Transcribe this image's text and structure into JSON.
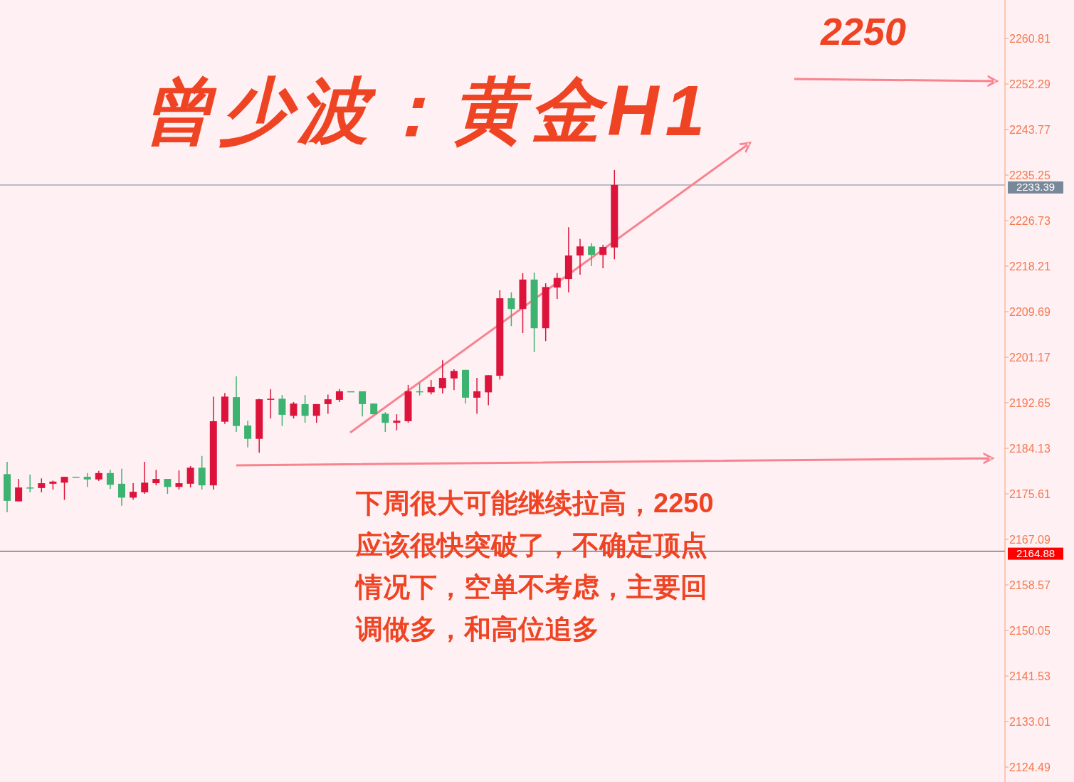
{
  "chart_data": {
    "type": "candlestick",
    "title": "曾少波：黄金H1",
    "annotations": [
      "2250",
      "下周很大可能继续拉高，2250应该很快突破了，不确定顶点情况下，空单不考虑，主要回调做多，和高位追多"
    ],
    "categories": [
      null,
      null,
      null,
      null,
      null,
      null,
      null,
      null,
      null,
      null,
      null,
      null,
      null,
      null,
      null,
      null,
      null,
      null,
      null,
      null,
      null,
      null,
      null,
      null,
      null,
      null,
      null,
      null,
      null,
      null,
      null,
      null,
      null,
      null,
      null,
      null,
      null,
      null,
      null,
      null,
      null,
      null,
      null,
      null,
      null,
      null,
      null,
      null,
      null,
      null,
      null,
      null,
      null,
      null,
      null,
      null,
      null,
      null,
      null,
      null,
      null,
      null,
      null,
      null,
      null,
      null,
      null,
      null,
      null,
      null,
      null,
      null,
      null,
      null,
      null,
      null,
      null,
      null,
      null,
      null,
      null,
      null,
      null,
      null,
      null,
      null,
      null,
      null
    ],
    "ohlc": [
      [
        2179.3,
        2181.6,
        2172.2,
        2174.3
      ],
      [
        2174.2,
        2178.4,
        2174.2,
        2176.8
      ],
      [
        2176.8,
        2179.2,
        2175.9,
        2176.8
      ],
      [
        2176.7,
        2178.5,
        2175.9,
        2177.6
      ],
      [
        2177.5,
        2178.1,
        2176.4,
        2177.9
      ],
      [
        2177.7,
        2178.8,
        2174.5,
        2178.8
      ],
      [
        2178.8,
        2178.8,
        2178.8,
        2178.8
      ],
      [
        2178.8,
        2179.5,
        2176.9,
        2178.3
      ],
      [
        2178.3,
        2179.9,
        2178.0,
        2179.5
      ],
      [
        2179.5,
        2180.1,
        2176.5,
        2177.3
      ],
      [
        2177.5,
        2180.3,
        2173.4,
        2174.9
      ],
      [
        2174.9,
        2177.6,
        2174.5,
        2176.0
      ],
      [
        2175.9,
        2181.6,
        2175.6,
        2177.7
      ],
      [
        2177.6,
        2180.1,
        2177.2,
        2178.4
      ],
      [
        2178.4,
        2178.4,
        2175.6,
        2176.9
      ],
      [
        2176.9,
        2180.0,
        2176.4,
        2177.6
      ],
      [
        2177.5,
        2180.8,
        2176.8,
        2180.5
      ],
      [
        2180.5,
        2182.7,
        2176.4,
        2177.2
      ],
      [
        2177.2,
        2193.8,
        2176.4,
        2189.2
      ],
      [
        2189.1,
        2194.5,
        2188.7,
        2193.8
      ],
      [
        2193.7,
        2197.6,
        2187.2,
        2188.3
      ],
      [
        2188.4,
        2189.3,
        2184.3,
        2185.9
      ],
      [
        2185.9,
        2193.4,
        2183.3,
        2193.3
      ],
      [
        2193.3,
        2195.2,
        2189.7,
        2193.4
      ],
      [
        2193.4,
        2194.1,
        2188.3,
        2190.4
      ],
      [
        2190.2,
        2192.8,
        2189.7,
        2192.5
      ],
      [
        2192.4,
        2194.1,
        2188.9,
        2190.2
      ],
      [
        2190.2,
        2192.4,
        2188.9,
        2192.4
      ],
      [
        2192.4,
        2194.2,
        2190.6,
        2193.3
      ],
      [
        2193.2,
        2195.2,
        2192.8,
        2194.8
      ],
      [
        2194.8,
        2194.8,
        2194.8,
        2194.8
      ],
      [
        2194.8,
        2194.8,
        2190.1,
        2192.4
      ],
      [
        2192.5,
        2192.5,
        2190.5,
        2190.5
      ],
      [
        2190.6,
        2190.9,
        2187.2,
        2188.9
      ],
      [
        2188.9,
        2190.5,
        2187.5,
        2189.3
      ],
      [
        2189.2,
        2196.0,
        2188.9,
        2194.8
      ],
      [
        2194.8,
        2196.4,
        2194.0,
        2194.8
      ],
      [
        2194.6,
        2196.9,
        2194.2,
        2195.6
      ],
      [
        2195.4,
        2200.6,
        2194.4,
        2197.3
      ],
      [
        2197.2,
        2198.9,
        2195.0,
        2198.6
      ],
      [
        2198.8,
        2198.8,
        2192.5,
        2193.6
      ],
      [
        2193.6,
        2197.3,
        2190.6,
        2194.8
      ],
      [
        2194.6,
        2197.8,
        2192.2,
        2197.8
      ],
      [
        2197.7,
        2213.7,
        2197.0,
        2212.2
      ],
      [
        2212.2,
        2213.3,
        2207.0,
        2210.2
      ],
      [
        2210.2,
        2216.9,
        2205.7,
        2215.7
      ],
      [
        2215.7,
        2217.0,
        2202.1,
        2206.6
      ],
      [
        2206.6,
        2215.0,
        2204.2,
        2214.3
      ],
      [
        2214.2,
        2216.9,
        2212.1,
        2216.0
      ],
      [
        2215.8,
        2225.5,
        2213.3,
        2220.2
      ],
      [
        2220.2,
        2223.3,
        2216.6,
        2221.9
      ],
      [
        2221.9,
        2222.5,
        2218.2,
        2220.3
      ],
      [
        2220.3,
        2222.2,
        2217.8,
        2221.8
      ],
      [
        2221.7,
        2236.2,
        2219.5,
        2233.4
      ],
      null,
      null,
      null,
      null,
      null,
      null,
      null,
      null,
      null,
      null,
      null,
      null,
      null,
      null,
      null,
      null,
      null,
      null,
      null,
      null,
      null,
      null,
      null,
      null,
      null,
      null,
      null,
      null,
      null,
      null,
      null,
      null,
      null,
      null
    ],
    "colors": [
      "#3cb371",
      "#dc143c",
      "#3cb371",
      "#dc143c",
      "#dc143c",
      "#dc143c",
      "#3cb371",
      "#3cb371",
      "#dc143c",
      "#3cb371",
      "#3cb371",
      "#dc143c",
      "#dc143c",
      "#dc143c",
      "#3cb371",
      "#dc143c",
      "#dc143c",
      "#3cb371",
      "#dc143c",
      "#dc143c",
      "#3cb371",
      "#3cb371",
      "#dc143c",
      "#dc143c",
      "#3cb371",
      "#dc143c",
      "#3cb371",
      "#dc143c",
      "#dc143c",
      "#dc143c",
      "#3cb371",
      "#3cb371",
      "#3cb371",
      "#3cb371",
      "#dc143c",
      "#dc143c",
      "#3cb371",
      "#dc143c",
      "#dc143c",
      "#dc143c",
      "#3cb371",
      "#dc143c",
      "#dc143c",
      "#dc143c",
      "#3cb371",
      "#dc143c",
      "#3cb371",
      "#dc143c",
      "#dc143c",
      "#dc143c",
      "#dc143c",
      "#3cb371",
      "#dc143c",
      "#dc143c",
      null,
      null,
      null,
      null,
      null,
      null,
      null,
      null,
      null,
      null,
      null,
      null,
      null,
      null,
      null,
      null,
      null,
      null,
      null,
      null,
      null,
      null,
      null,
      null,
      null,
      null,
      null,
      null,
      null,
      null,
      null,
      null,
      null,
      null
    ],
    "ylim": [
      2121.7,
      2268.0
    ],
    "yticks": [
      2124.49,
      2133.01,
      2141.53,
      2150.05,
      2158.57,
      2167.09,
      2175.61,
      2184.13,
      2192.65,
      2201.17,
      2209.69,
      2218.21,
      2226.73,
      2235.25,
      2243.77,
      2252.29,
      2260.81
    ],
    "ref_lines": [
      {
        "axis": "y",
        "value": 2233.39,
        "label": "2233.39",
        "color": "#778899"
      },
      {
        "axis": "y",
        "value": 2164.88,
        "label": "2164.88",
        "color": "#333333"
      }
    ],
    "grid": false
  }
}
